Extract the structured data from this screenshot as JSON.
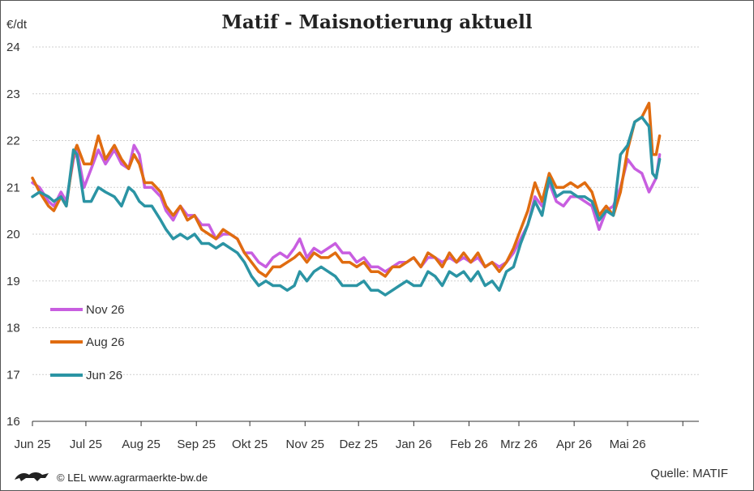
{
  "title": "Matif - Maisnotierung aktuell",
  "footer": {
    "credit": "© LEL www.agrarmaerkte-bw.de",
    "source": "Quelle: MATIF"
  },
  "logo_icon": "lion-crest-icon",
  "chart_data": {
    "type": "line",
    "title": "Matif - Maisnotierung aktuell",
    "ylabel": "€/dt",
    "xlabel": "",
    "ylim": [
      16,
      24
    ],
    "yticks": [
      "16",
      "17",
      "18",
      "19",
      "20",
      "21",
      "22",
      "23",
      "24"
    ],
    "xticks": [
      "Jun 25",
      "Jul 25",
      "Aug 25",
      "Sep 25",
      "Okt 25",
      "Nov 25",
      "Dez 25",
      "Jan 26",
      "Feb 26",
      "Mrz 26",
      "Apr 26",
      "Mai 26"
    ],
    "x_range": [
      "2025-06-01",
      "2026-06-10"
    ],
    "grid": "horizontal dashed",
    "legend_position": "bottom-left",
    "series": [
      {
        "name": "Nov 26",
        "color": "#c85ee0",
        "points": [
          [
            "2025-06-01",
            21.1
          ],
          [
            "2025-06-05",
            21.0
          ],
          [
            "2025-06-10",
            20.7
          ],
          [
            "2025-06-13",
            20.6
          ],
          [
            "2025-06-17",
            20.9
          ],
          [
            "2025-06-20",
            20.7
          ],
          [
            "2025-06-24",
            21.6
          ],
          [
            "2025-06-26",
            21.8
          ],
          [
            "2025-06-30",
            21.0
          ],
          [
            "2025-07-04",
            21.4
          ],
          [
            "2025-07-08",
            21.8
          ],
          [
            "2025-07-12",
            21.5
          ],
          [
            "2025-07-17",
            21.8
          ],
          [
            "2025-07-21",
            21.5
          ],
          [
            "2025-07-25",
            21.4
          ],
          [
            "2025-07-28",
            21.9
          ],
          [
            "2025-07-31",
            21.7
          ],
          [
            "2025-08-03",
            21.0
          ],
          [
            "2025-08-07",
            21.0
          ],
          [
            "2025-08-12",
            20.8
          ],
          [
            "2025-08-15",
            20.5
          ],
          [
            "2025-08-19",
            20.3
          ],
          [
            "2025-08-23",
            20.6
          ],
          [
            "2025-08-27",
            20.4
          ],
          [
            "2025-08-31",
            20.4
          ],
          [
            "2025-09-04",
            20.2
          ],
          [
            "2025-09-08",
            20.2
          ],
          [
            "2025-09-12",
            19.9
          ],
          [
            "2025-09-16",
            20.0
          ],
          [
            "2025-09-20",
            20.0
          ],
          [
            "2025-09-24",
            19.9
          ],
          [
            "2025-09-28",
            19.6
          ],
          [
            "2025-10-02",
            19.6
          ],
          [
            "2025-10-06",
            19.4
          ],
          [
            "2025-10-10",
            19.3
          ],
          [
            "2025-10-14",
            19.5
          ],
          [
            "2025-10-18",
            19.6
          ],
          [
            "2025-10-22",
            19.5
          ],
          [
            "2025-10-26",
            19.7
          ],
          [
            "2025-10-29",
            19.9
          ],
          [
            "2025-11-02",
            19.5
          ],
          [
            "2025-11-06",
            19.7
          ],
          [
            "2025-11-10",
            19.6
          ],
          [
            "2025-11-14",
            19.7
          ],
          [
            "2025-11-18",
            19.8
          ],
          [
            "2025-11-22",
            19.6
          ],
          [
            "2025-11-26",
            19.6
          ],
          [
            "2025-11-30",
            19.4
          ],
          [
            "2025-12-04",
            19.5
          ],
          [
            "2025-12-08",
            19.3
          ],
          [
            "2025-12-12",
            19.3
          ],
          [
            "2025-12-16",
            19.2
          ],
          [
            "2025-12-20",
            19.3
          ],
          [
            "2025-12-24",
            19.4
          ],
          [
            "2025-12-28",
            19.4
          ],
          [
            "2026-01-01",
            19.5
          ],
          [
            "2026-01-05",
            19.3
          ],
          [
            "2026-01-09",
            19.5
          ],
          [
            "2026-01-13",
            19.5
          ],
          [
            "2026-01-17",
            19.4
          ],
          [
            "2026-01-21",
            19.5
          ],
          [
            "2026-01-25",
            19.4
          ],
          [
            "2026-01-29",
            19.5
          ],
          [
            "2026-02-02",
            19.4
          ],
          [
            "2026-02-06",
            19.5
          ],
          [
            "2026-02-10",
            19.3
          ],
          [
            "2026-02-14",
            19.4
          ],
          [
            "2026-02-18",
            19.3
          ],
          [
            "2026-02-22",
            19.4
          ],
          [
            "2026-02-26",
            19.6
          ],
          [
            "2026-03-02",
            19.9
          ],
          [
            "2026-03-06",
            20.2
          ],
          [
            "2026-03-10",
            20.8
          ],
          [
            "2026-03-14",
            20.6
          ],
          [
            "2026-03-18",
            21.1
          ],
          [
            "2026-03-22",
            20.7
          ],
          [
            "2026-03-26",
            20.6
          ],
          [
            "2026-03-30",
            20.8
          ],
          [
            "2026-04-03",
            20.8
          ],
          [
            "2026-04-07",
            20.7
          ],
          [
            "2026-04-11",
            20.6
          ],
          [
            "2026-04-15",
            20.1
          ],
          [
            "2026-04-19",
            20.5
          ],
          [
            "2026-04-23",
            20.6
          ],
          [
            "2026-04-27",
            21.0
          ],
          [
            "2026-05-01",
            21.6
          ],
          [
            "2026-05-05",
            21.4
          ],
          [
            "2026-05-09",
            21.3
          ],
          [
            "2026-05-13",
            20.9
          ],
          [
            "2026-05-17",
            21.2
          ],
          [
            "2026-05-19",
            21.7
          ]
        ]
      },
      {
        "name": "Aug 26",
        "color": "#e06c10",
        "points": [
          [
            "2025-06-01",
            21.2
          ],
          [
            "2025-06-05",
            20.9
          ],
          [
            "2025-06-10",
            20.6
          ],
          [
            "2025-06-13",
            20.5
          ],
          [
            "2025-06-17",
            20.8
          ],
          [
            "2025-06-20",
            20.6
          ],
          [
            "2025-06-24",
            21.7
          ],
          [
            "2025-06-26",
            21.9
          ],
          [
            "2025-06-30",
            21.5
          ],
          [
            "2025-07-04",
            21.5
          ],
          [
            "2025-07-08",
            22.1
          ],
          [
            "2025-07-12",
            21.6
          ],
          [
            "2025-07-17",
            21.9
          ],
          [
            "2025-07-21",
            21.6
          ],
          [
            "2025-07-25",
            21.4
          ],
          [
            "2025-07-28",
            21.7
          ],
          [
            "2025-07-31",
            21.5
          ],
          [
            "2025-08-03",
            21.1
          ],
          [
            "2025-08-07",
            21.1
          ],
          [
            "2025-08-12",
            20.9
          ],
          [
            "2025-08-15",
            20.6
          ],
          [
            "2025-08-19",
            20.4
          ],
          [
            "2025-08-23",
            20.6
          ],
          [
            "2025-08-27",
            20.3
          ],
          [
            "2025-08-31",
            20.4
          ],
          [
            "2025-09-04",
            20.1
          ],
          [
            "2025-09-08",
            20.0
          ],
          [
            "2025-09-12",
            19.9
          ],
          [
            "2025-09-16",
            20.1
          ],
          [
            "2025-09-20",
            20.0
          ],
          [
            "2025-09-24",
            19.9
          ],
          [
            "2025-09-28",
            19.6
          ],
          [
            "2025-10-02",
            19.4
          ],
          [
            "2025-10-06",
            19.2
          ],
          [
            "2025-10-10",
            19.1
          ],
          [
            "2025-10-14",
            19.3
          ],
          [
            "2025-10-18",
            19.3
          ],
          [
            "2025-10-22",
            19.4
          ],
          [
            "2025-10-26",
            19.5
          ],
          [
            "2025-10-29",
            19.6
          ],
          [
            "2025-11-02",
            19.4
          ],
          [
            "2025-11-06",
            19.6
          ],
          [
            "2025-11-10",
            19.5
          ],
          [
            "2025-11-14",
            19.5
          ],
          [
            "2025-11-18",
            19.6
          ],
          [
            "2025-11-22",
            19.4
          ],
          [
            "2025-11-26",
            19.4
          ],
          [
            "2025-11-30",
            19.3
          ],
          [
            "2025-12-04",
            19.4
          ],
          [
            "2025-12-08",
            19.2
          ],
          [
            "2025-12-12",
            19.2
          ],
          [
            "2025-12-16",
            19.1
          ],
          [
            "2025-12-20",
            19.3
          ],
          [
            "2025-12-24",
            19.3
          ],
          [
            "2025-12-28",
            19.4
          ],
          [
            "2026-01-01",
            19.5
          ],
          [
            "2026-01-05",
            19.3
          ],
          [
            "2026-01-09",
            19.6
          ],
          [
            "2026-01-13",
            19.5
          ],
          [
            "2026-01-17",
            19.3
          ],
          [
            "2026-01-21",
            19.6
          ],
          [
            "2026-01-25",
            19.4
          ],
          [
            "2026-01-29",
            19.6
          ],
          [
            "2026-02-02",
            19.4
          ],
          [
            "2026-02-06",
            19.6
          ],
          [
            "2026-02-10",
            19.3
          ],
          [
            "2026-02-14",
            19.4
          ],
          [
            "2026-02-18",
            19.2
          ],
          [
            "2026-02-22",
            19.4
          ],
          [
            "2026-02-26",
            19.7
          ],
          [
            "2026-03-02",
            20.1
          ],
          [
            "2026-03-06",
            20.5
          ],
          [
            "2026-03-10",
            21.1
          ],
          [
            "2026-03-14",
            20.7
          ],
          [
            "2026-03-18",
            21.3
          ],
          [
            "2026-03-22",
            21.0
          ],
          [
            "2026-03-26",
            21.0
          ],
          [
            "2026-03-30",
            21.1
          ],
          [
            "2026-04-03",
            21.0
          ],
          [
            "2026-04-07",
            21.1
          ],
          [
            "2026-04-11",
            20.9
          ],
          [
            "2026-04-15",
            20.4
          ],
          [
            "2026-04-19",
            20.6
          ],
          [
            "2026-04-23",
            20.4
          ],
          [
            "2026-04-27",
            20.9
          ],
          [
            "2026-05-01",
            21.8
          ],
          [
            "2026-05-05",
            22.4
          ],
          [
            "2026-05-09",
            22.5
          ],
          [
            "2026-05-13",
            22.8
          ],
          [
            "2026-05-15",
            21.7
          ],
          [
            "2026-05-17",
            21.7
          ],
          [
            "2026-05-19",
            22.1
          ]
        ]
      },
      {
        "name": "Jun 26",
        "color": "#2b94a4",
        "points": [
          [
            "2025-06-01",
            20.8
          ],
          [
            "2025-06-05",
            20.9
          ],
          [
            "2025-06-10",
            20.8
          ],
          [
            "2025-06-13",
            20.7
          ],
          [
            "2025-06-17",
            20.8
          ],
          [
            "2025-06-20",
            20.6
          ],
          [
            "2025-06-24",
            21.8
          ],
          [
            "2025-06-26",
            21.7
          ],
          [
            "2025-06-30",
            20.7
          ],
          [
            "2025-07-04",
            20.7
          ],
          [
            "2025-07-08",
            21.0
          ],
          [
            "2025-07-12",
            20.9
          ],
          [
            "2025-07-17",
            20.8
          ],
          [
            "2025-07-21",
            20.6
          ],
          [
            "2025-07-25",
            21.0
          ],
          [
            "2025-07-28",
            20.9
          ],
          [
            "2025-07-31",
            20.7
          ],
          [
            "2025-08-03",
            20.6
          ],
          [
            "2025-08-07",
            20.6
          ],
          [
            "2025-08-12",
            20.3
          ],
          [
            "2025-08-15",
            20.1
          ],
          [
            "2025-08-19",
            19.9
          ],
          [
            "2025-08-23",
            20.0
          ],
          [
            "2025-08-27",
            19.9
          ],
          [
            "2025-08-31",
            20.0
          ],
          [
            "2025-09-04",
            19.8
          ],
          [
            "2025-09-08",
            19.8
          ],
          [
            "2025-09-12",
            19.7
          ],
          [
            "2025-09-16",
            19.8
          ],
          [
            "2025-09-20",
            19.7
          ],
          [
            "2025-09-24",
            19.6
          ],
          [
            "2025-09-28",
            19.4
          ],
          [
            "2025-10-02",
            19.1
          ],
          [
            "2025-10-06",
            18.9
          ],
          [
            "2025-10-10",
            19.0
          ],
          [
            "2025-10-14",
            18.9
          ],
          [
            "2025-10-18",
            18.9
          ],
          [
            "2025-10-22",
            18.8
          ],
          [
            "2025-10-26",
            18.9
          ],
          [
            "2025-10-29",
            19.2
          ],
          [
            "2025-11-02",
            19.0
          ],
          [
            "2025-11-06",
            19.2
          ],
          [
            "2025-11-10",
            19.3
          ],
          [
            "2025-11-14",
            19.2
          ],
          [
            "2025-11-18",
            19.1
          ],
          [
            "2025-11-22",
            18.9
          ],
          [
            "2025-11-26",
            18.9
          ],
          [
            "2025-11-30",
            18.9
          ],
          [
            "2025-12-04",
            19.0
          ],
          [
            "2025-12-08",
            18.8
          ],
          [
            "2025-12-12",
            18.8
          ],
          [
            "2025-12-16",
            18.7
          ],
          [
            "2025-12-20",
            18.8
          ],
          [
            "2025-12-24",
            18.9
          ],
          [
            "2025-12-28",
            19.0
          ],
          [
            "2026-01-01",
            18.9
          ],
          [
            "2026-01-05",
            18.9
          ],
          [
            "2026-01-09",
            19.2
          ],
          [
            "2026-01-13",
            19.1
          ],
          [
            "2026-01-17",
            18.9
          ],
          [
            "2026-01-21",
            19.2
          ],
          [
            "2026-01-25",
            19.1
          ],
          [
            "2026-01-29",
            19.2
          ],
          [
            "2026-02-02",
            19.0
          ],
          [
            "2026-02-06",
            19.2
          ],
          [
            "2026-02-10",
            18.9
          ],
          [
            "2026-02-14",
            19.0
          ],
          [
            "2026-02-18",
            18.8
          ],
          [
            "2026-02-22",
            19.2
          ],
          [
            "2026-02-26",
            19.3
          ],
          [
            "2026-03-02",
            19.8
          ],
          [
            "2026-03-06",
            20.2
          ],
          [
            "2026-03-10",
            20.7
          ],
          [
            "2026-03-14",
            20.4
          ],
          [
            "2026-03-18",
            21.2
          ],
          [
            "2026-03-22",
            20.8
          ],
          [
            "2026-03-26",
            20.9
          ],
          [
            "2026-03-30",
            20.9
          ],
          [
            "2026-04-03",
            20.8
          ],
          [
            "2026-04-07",
            20.8
          ],
          [
            "2026-04-11",
            20.7
          ],
          [
            "2026-04-15",
            20.3
          ],
          [
            "2026-04-19",
            20.5
          ],
          [
            "2026-04-23",
            20.4
          ],
          [
            "2026-04-27",
            21.7
          ],
          [
            "2026-05-01",
            21.9
          ],
          [
            "2026-05-05",
            22.4
          ],
          [
            "2026-05-09",
            22.5
          ],
          [
            "2026-05-13",
            22.3
          ],
          [
            "2026-05-15",
            21.3
          ],
          [
            "2026-05-17",
            21.2
          ],
          [
            "2026-05-19",
            21.6
          ]
        ]
      }
    ]
  }
}
